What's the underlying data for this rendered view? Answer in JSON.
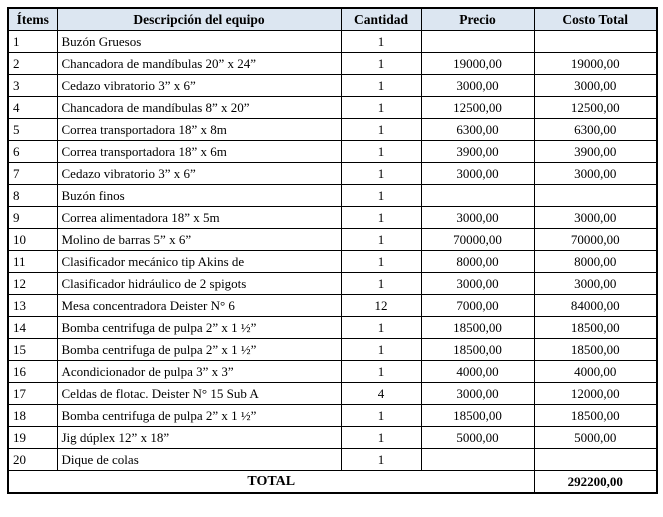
{
  "table": {
    "header_bg": "#dce6f1",
    "columns": [
      {
        "key": "item",
        "label": "Ítems"
      },
      {
        "key": "descripcion",
        "label": "Descripción del equipo"
      },
      {
        "key": "cantidad",
        "label": "Cantidad"
      },
      {
        "key": "precio",
        "label": "Precio"
      },
      {
        "key": "costo_total",
        "label": "Costo Total"
      }
    ],
    "rows": [
      [
        "1",
        "Buzón Gruesos",
        "1",
        "",
        ""
      ],
      [
        "2",
        "Chancadora de mandíbulas 20” x 24”",
        "1",
        "19000,00",
        "19000,00"
      ],
      [
        "3",
        "Cedazo vibratorio 3” x 6”",
        "1",
        "3000,00",
        "3000,00"
      ],
      [
        "4",
        "Chancadora de mandíbulas 8” x 20”",
        "1",
        "12500,00",
        "12500,00"
      ],
      [
        "5",
        "Correa transportadora 18” x 8m",
        "1",
        "6300,00",
        "6300,00"
      ],
      [
        "6",
        "Correa transportadora 18” x 6m",
        "1",
        "3900,00",
        "3900,00"
      ],
      [
        "7",
        "Cedazo vibratorio 3” x 6”",
        "1",
        "3000,00",
        "3000,00"
      ],
      [
        "8",
        "Buzón finos",
        "1",
        "",
        ""
      ],
      [
        "9",
        "Correa alimentadora 18” x 5m",
        "1",
        "3000,00",
        "3000,00"
      ],
      [
        "10",
        "Molino de barras 5” x 6”",
        "1",
        "70000,00",
        "70000,00"
      ],
      [
        "11",
        "Clasificador mecánico tip Akins de",
        "1",
        "8000,00",
        "8000,00"
      ],
      [
        "12",
        "Clasificador hidráulico de 2 spigots",
        "1",
        "3000,00",
        "3000,00"
      ],
      [
        "13",
        "Mesa concentradora Deister N° 6",
        "12",
        "7000,00",
        "84000,00"
      ],
      [
        "14",
        "Bomba centrifuga de pulpa 2” x 1 ½”",
        "1",
        "18500,00",
        "18500,00"
      ],
      [
        "15",
        "Bomba centrifuga de pulpa 2” x 1 ½”",
        "1",
        "18500,00",
        "18500,00"
      ],
      [
        "16",
        "Acondicionador de pulpa 3” x 3”",
        "1",
        "4000,00",
        "4000,00"
      ],
      [
        "17",
        "Celdas de flotac. Deister N° 15 Sub A",
        "4",
        "3000,00",
        "12000,00"
      ],
      [
        "18",
        "Bomba centrifuga de pulpa 2” x 1 ½”",
        "1",
        "18500,00",
        "18500,00"
      ],
      [
        "19",
        "Jig dúplex 12” x 18”",
        "1",
        "5000,00",
        "5000,00"
      ],
      [
        "20",
        "Dique de colas",
        "1",
        "",
        ""
      ]
    ],
    "footer": {
      "label": "TOTAL",
      "value": "292200,00"
    }
  }
}
